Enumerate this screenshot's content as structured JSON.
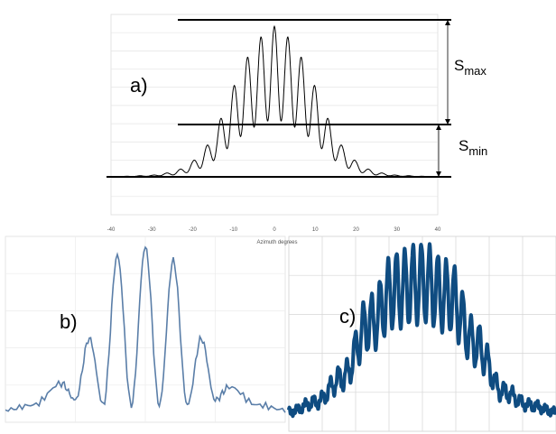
{
  "chart_data": [
    {
      "panel": "a",
      "type": "line",
      "label": "a)",
      "xlabel": "Azimuth degrees",
      "x_ticks": [
        "-40",
        "-30",
        "-20",
        "-10",
        "0",
        "10",
        "20",
        "30",
        "40"
      ],
      "xlim": [
        -40,
        40
      ],
      "grid": true,
      "series": [
        {
          "color": "#000000",
          "x": [
            -40,
            -30,
            -25,
            -22,
            -20,
            -18,
            -16,
            -14,
            -12,
            -10,
            -8,
            -6,
            -4,
            -2,
            0,
            2,
            4,
            6,
            8,
            10,
            12,
            14,
            16,
            18,
            20,
            22,
            25,
            30,
            40
          ],
          "y": [
            0,
            0.01,
            0.03,
            0.06,
            0.1,
            0.15,
            0.22,
            0.32,
            0.45,
            0.58,
            0.7,
            0.8,
            0.88,
            0.94,
            0.97,
            0.94,
            0.88,
            0.8,
            0.7,
            0.58,
            0.45,
            0.32,
            0.22,
            0.15,
            0.1,
            0.06,
            0.03,
            0.01,
            0
          ]
        }
      ],
      "annotations": [
        {
          "text": "S",
          "sub": "max"
        },
        {
          "text": "S",
          "sub": "min"
        }
      ]
    },
    {
      "panel": "b",
      "type": "line",
      "label": "b)",
      "grid": true,
      "series": [
        {
          "color": "#5a7ea8",
          "x": [
            0,
            10,
            20,
            25,
            30,
            35,
            40,
            45,
            50,
            55,
            60,
            65,
            70,
            75,
            80,
            90,
            100
          ],
          "y": [
            0.02,
            0.05,
            0.18,
            0.08,
            0.45,
            0.05,
            0.95,
            0.05,
            1.0,
            0.05,
            0.92,
            0.05,
            0.45,
            0.08,
            0.16,
            0.05,
            0.02
          ]
        }
      ]
    },
    {
      "panel": "c",
      "type": "line",
      "label": "c)",
      "grid": true,
      "series": [
        {
          "color": "#0f4c81",
          "x": [
            0,
            10,
            20,
            30,
            40,
            50,
            60,
            70,
            80,
            90,
            100
          ],
          "y": [
            0.05,
            0.12,
            0.3,
            0.7,
            0.95,
            1.0,
            0.9,
            0.55,
            0.2,
            0.1,
            0.05
          ]
        }
      ]
    }
  ]
}
